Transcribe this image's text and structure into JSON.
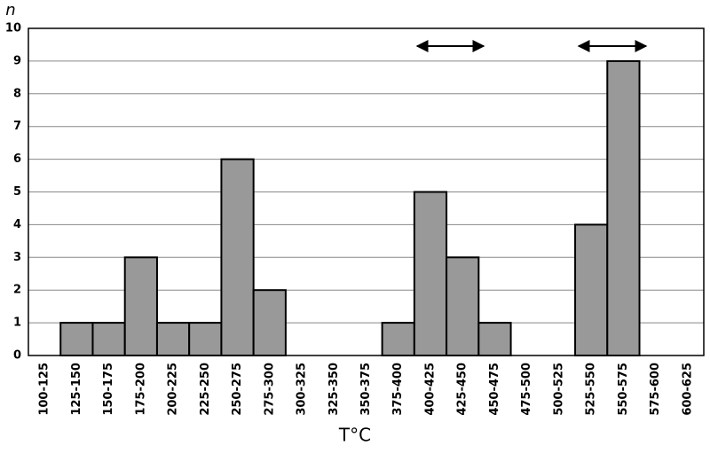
{
  "chart_data": {
    "type": "bar",
    "y_label": "n",
    "x_label": "T°C",
    "categories": [
      "100-125",
      "125-150",
      "150-175",
      "175-200",
      "200-225",
      "225-250",
      "250-275",
      "275-300",
      "300-325",
      "325-350",
      "350-375",
      "375-400",
      "400-425",
      "425-450",
      "450-475",
      "475-500",
      "500-525",
      "525-550",
      "550-575",
      "575-600",
      "600-625"
    ],
    "values": [
      0,
      1,
      1,
      3,
      1,
      1,
      6,
      2,
      0,
      0,
      0,
      1,
      5,
      3,
      1,
      0,
      0,
      4,
      9,
      0,
      0
    ],
    "color": "#999999",
    "ylim": [
      0,
      10
    ],
    "yticks": [
      0,
      1,
      2,
      3,
      4,
      5,
      6,
      7,
      8,
      9,
      10
    ],
    "grid": true
  }
}
